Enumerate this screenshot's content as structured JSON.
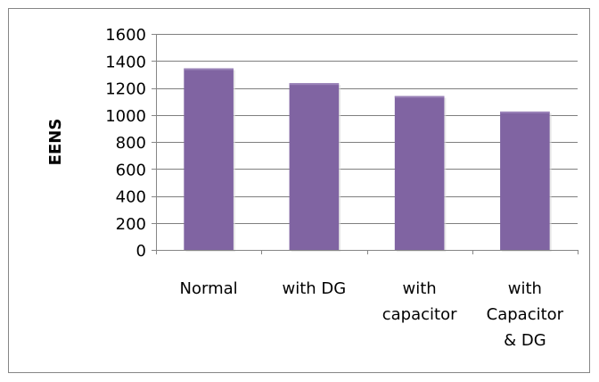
{
  "chart_data": {
    "type": "bar",
    "title": "",
    "xlabel": "",
    "ylabel": "EENS",
    "categories": [
      "Normal",
      "with DG",
      "with capacitor",
      "with Capacitor & DG"
    ],
    "category_lines": [
      [
        "Normal"
      ],
      [
        "with DG"
      ],
      [
        "with",
        "capacitor"
      ],
      [
        "with",
        "Capacitor",
        "& DG"
      ]
    ],
    "values": [
      1345,
      1235,
      1140,
      1025
    ],
    "ylim": [
      0,
      1600
    ],
    "yticks": [
      0,
      200,
      400,
      600,
      800,
      1000,
      1200,
      1400,
      1600
    ],
    "grid": true,
    "legend": "none",
    "colors": {
      "bar": "#8064A2",
      "bar_highlight": "#9A82B8",
      "grid": "#7f7f7f",
      "axis": "#868686",
      "frame": "#868686"
    }
  }
}
